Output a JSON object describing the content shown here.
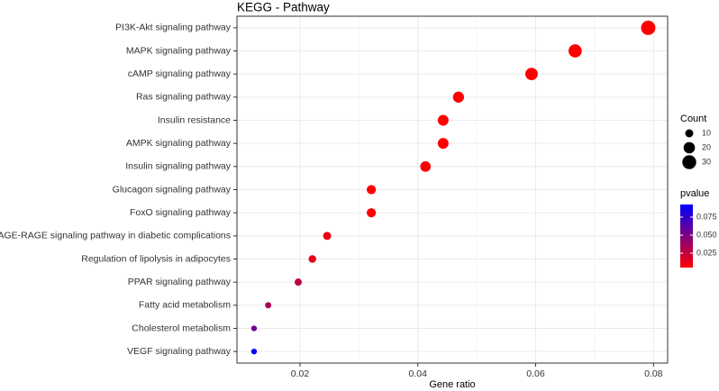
{
  "chart_data": {
    "type": "dotplot",
    "title": "KEGG - Pathway",
    "x_label": "Gene ratio",
    "categories": [
      "PI3K-Akt signaling pathway",
      "MAPK signaling pathway",
      "cAMP signaling pathway",
      "Ras signaling pathway",
      "Insulin resistance",
      "AMPK signaling pathway",
      "Insulin signaling pathway",
      "Glucagon signaling pathway",
      "FoxO signaling pathway",
      "AGE-RAGE signaling pathway in diabetic complications",
      "Regulation of lipolysis in adipocytes",
      "PPAR signaling pathway",
      "Fatty acid metabolism",
      "Cholesterol metabolism",
      "VEGF signaling pathway"
    ],
    "values": [
      0.0791,
      0.0667,
      0.0593,
      0.0469,
      0.0443,
      0.0443,
      0.0413,
      0.0321,
      0.0321,
      0.0246,
      0.0221,
      0.0197,
      0.0146,
      0.0122,
      0.0122
    ],
    "sizes": [
      32,
      27,
      24,
      19,
      18,
      18,
      17,
      13,
      13,
      10,
      9,
      8,
      6,
      5,
      5
    ],
    "pvalues": [
      0.001,
      0.001,
      0.001,
      0.001,
      0.002,
      0.002,
      0.003,
      0.005,
      0.006,
      0.01,
      0.013,
      0.028,
      0.035,
      0.055,
      0.09
    ],
    "xlim": [
      0.0093,
      0.0824
    ],
    "xticks": [
      0.02,
      0.04,
      0.06,
      0.08
    ],
    "grid": true,
    "size_legend_title": "Count",
    "size_legend_values": [
      10,
      20,
      30
    ],
    "color_legend_title": "pvalue",
    "pvalue_lim": [
      0.005,
      0.0925
    ],
    "color_ticks": [
      0.025,
      {
        "value": 0.05,
        "label": "0.050"
      },
      0.075
    ],
    "color_low": "#ff0000",
    "color_high": "#0000ff"
  }
}
